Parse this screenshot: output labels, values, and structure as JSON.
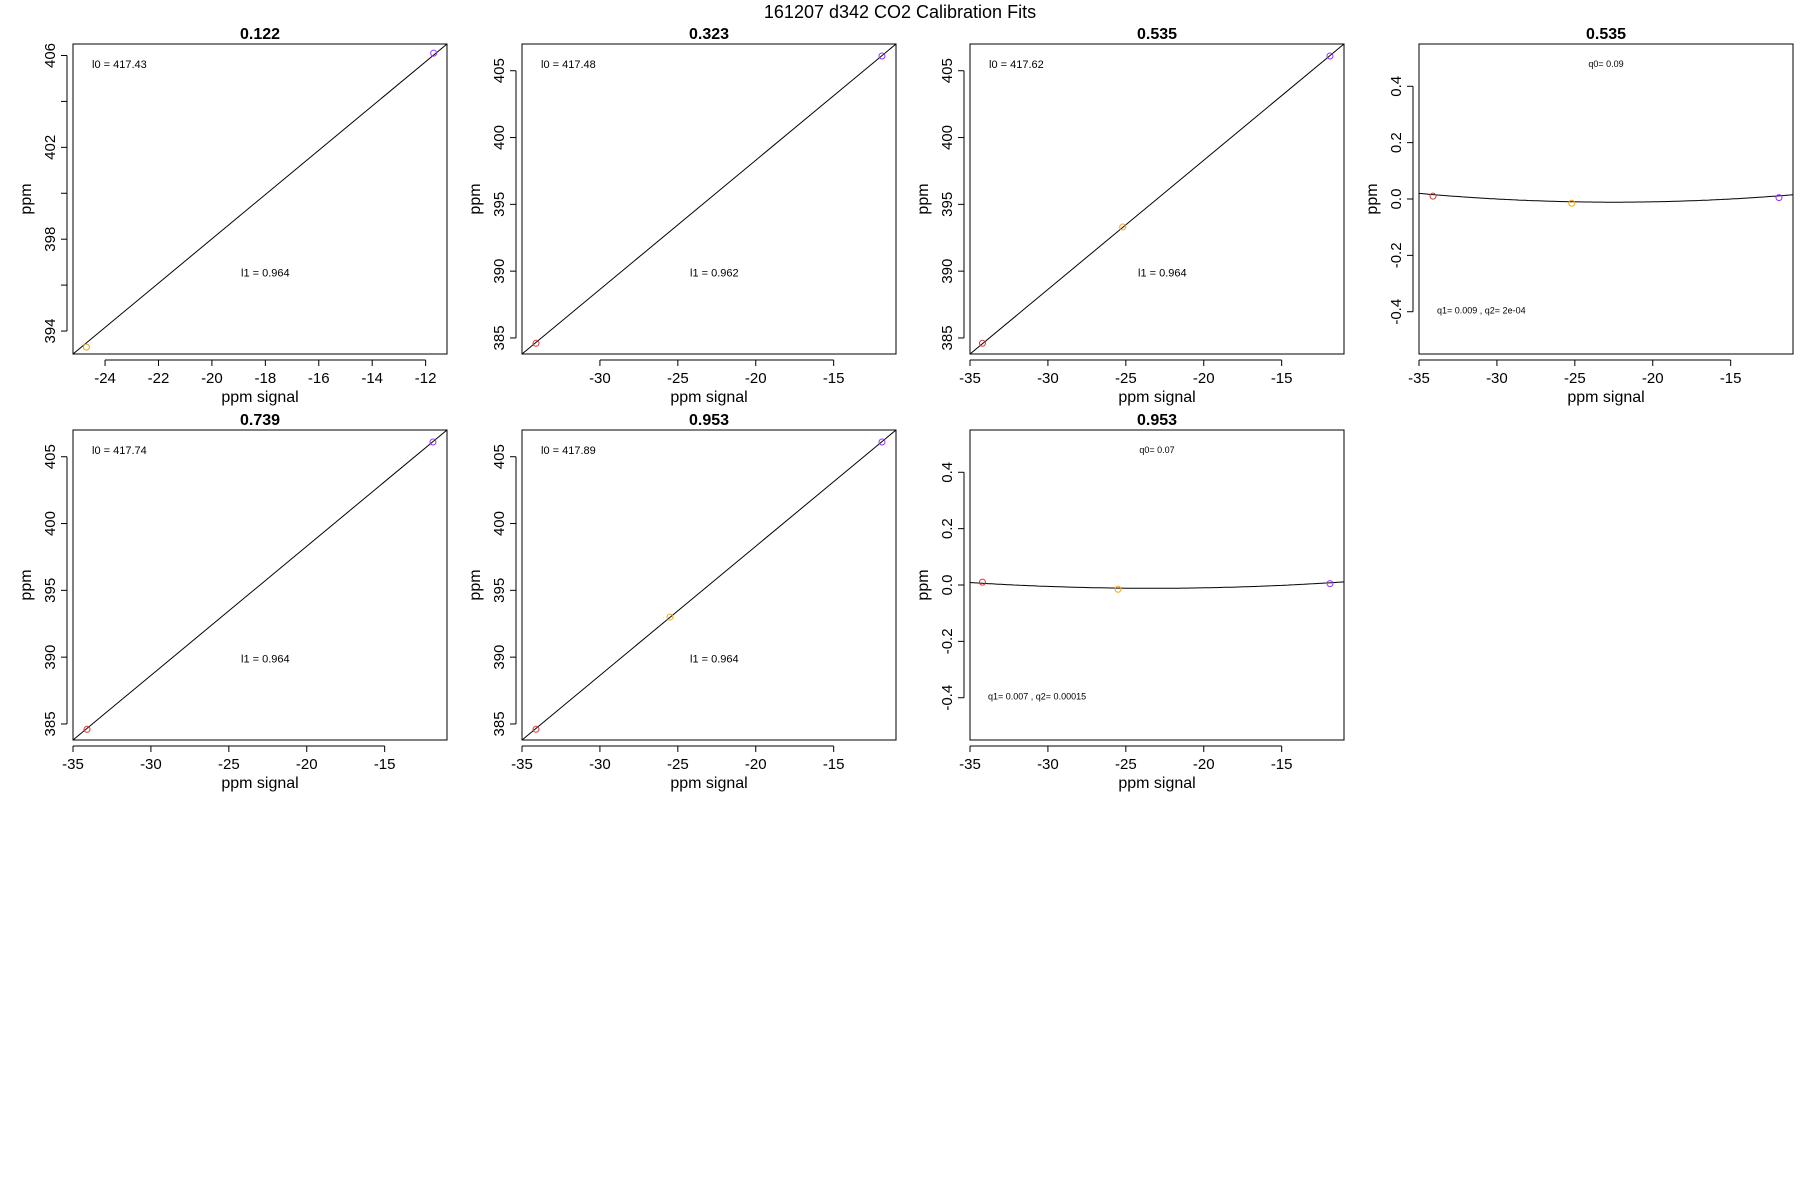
{
  "figure": {
    "title": "161207   d342   CO2 Calibration Fits"
  },
  "colors": {
    "axis": "#000000",
    "fit": "#000000",
    "p_red": "#e0312e",
    "p_orange": "#f2a51c",
    "p_purple": "#9b30ff"
  },
  "chart_data": [
    {
      "type": "line",
      "title": "0.122",
      "xlabel": "ppm signal",
      "ylabel": "ppm",
      "xlim": [
        -25.2,
        -11.2
      ],
      "ylim": [
        393.0,
        406.5
      ],
      "xticks": [
        -24,
        -22,
        -20,
        -18,
        -16,
        -14,
        -12
      ],
      "yticks": [
        394,
        398,
        402,
        406
      ],
      "yminorticks": [
        396,
        400,
        404
      ],
      "fit": {
        "kind": "linear",
        "x": [
          -25.2,
          -11.2
        ],
        "y": [
          393.0,
          406.5
        ]
      },
      "points": [
        {
          "x": -24.7,
          "y": 393.3,
          "color": "#f2a51c"
        },
        {
          "x": -11.7,
          "y": 406.1,
          "color": "#9b30ff"
        }
      ],
      "annotations": [
        {
          "text": "l0 =  417.43",
          "pos": "top-left"
        },
        {
          "text": "l1 =  0.964",
          "pos": "mid-lower"
        }
      ]
    },
    {
      "type": "line",
      "title": "0.323",
      "xlabel": "ppm signal",
      "ylabel": "ppm",
      "xlim": [
        -35.0,
        -11.0
      ],
      "ylim": [
        383.8,
        407.0
      ],
      "xticks": [
        -30,
        -25,
        -20,
        -15
      ],
      "yticks": [
        385,
        390,
        395,
        400,
        405
      ],
      "fit": {
        "kind": "linear",
        "x": [
          -35.0,
          -11.0
        ],
        "y": [
          383.8,
          407.0
        ]
      },
      "points": [
        {
          "x": -34.1,
          "y": 384.6,
          "color": "#e0312e"
        },
        {
          "x": -11.9,
          "y": 406.1,
          "color": "#9b30ff"
        }
      ],
      "annotations": [
        {
          "text": "l0 =  417.48",
          "pos": "top-left"
        },
        {
          "text": "l1 =  0.962",
          "pos": "mid-lower"
        }
      ]
    },
    {
      "type": "line",
      "title": "0.535",
      "xlabel": "ppm signal",
      "ylabel": "ppm",
      "xlim": [
        -35.0,
        -11.0
      ],
      "ylim": [
        383.8,
        407.0
      ],
      "xticks": [
        -35,
        -30,
        -25,
        -20,
        -15
      ],
      "yticks": [
        385,
        390,
        395,
        400,
        405
      ],
      "fit": {
        "kind": "linear",
        "x": [
          -35.0,
          -11.0
        ],
        "y": [
          383.8,
          407.0
        ]
      },
      "points": [
        {
          "x": -34.2,
          "y": 384.6,
          "color": "#e0312e"
        },
        {
          "x": -25.2,
          "y": 393.3,
          "color": "#f2a51c"
        },
        {
          "x": -11.9,
          "y": 406.1,
          "color": "#9b30ff"
        }
      ],
      "annotations": [
        {
          "text": "l0 =  417.62",
          "pos": "top-left"
        },
        {
          "text": "l1 =  0.964",
          "pos": "mid-lower"
        }
      ]
    },
    {
      "type": "line",
      "title": "0.535",
      "xlabel": "ppm signal",
      "ylabel": "ppm",
      "xlim": [
        -35.0,
        -11.0
      ],
      "ylim": [
        -0.55,
        0.55
      ],
      "xticks": [
        -35,
        -30,
        -25,
        -20,
        -15
      ],
      "yticks": [
        -0.4,
        -0.2,
        0.0,
        0.2,
        0.4
      ],
      "ytick_labels": [
        "-0.4",
        "-0.2",
        "0.0",
        "0.2",
        "0.4"
      ],
      "fit": {
        "kind": "quadratic",
        "coef": [
          0.09,
          0.009,
          0.0002
        ]
      },
      "points": [
        {
          "x": -34.1,
          "y": 0.01,
          "color": "#e0312e"
        },
        {
          "x": -25.2,
          "y": -0.015,
          "color": "#f2a51c"
        },
        {
          "x": -11.9,
          "y": 0.005,
          "color": "#9b30ff"
        }
      ],
      "annotations": [
        {
          "text": "q0= 0.09",
          "pos": "top-center"
        },
        {
          "text": "q1= 0.009 , q2= 2e-04",
          "pos": "bottom-left"
        }
      ]
    },
    {
      "type": "line",
      "title": "0.739",
      "xlabel": "ppm signal",
      "ylabel": "ppm",
      "xlim": [
        -35.0,
        -11.0
      ],
      "ylim": [
        383.8,
        407.0
      ],
      "xticks": [
        -35,
        -30,
        -25,
        -20,
        -15
      ],
      "yticks": [
        385,
        390,
        395,
        400,
        405
      ],
      "fit": {
        "kind": "linear",
        "x": [
          -35.0,
          -11.0
        ],
        "y": [
          383.8,
          407.0
        ]
      },
      "points": [
        {
          "x": -34.1,
          "y": 384.6,
          "color": "#e0312e"
        },
        {
          "x": -11.9,
          "y": 406.1,
          "color": "#9b30ff"
        }
      ],
      "annotations": [
        {
          "text": "l0 =  417.74",
          "pos": "top-left"
        },
        {
          "text": "l1 =  0.964",
          "pos": "mid-lower"
        }
      ]
    },
    {
      "type": "line",
      "title": "0.953",
      "xlabel": "ppm signal",
      "ylabel": "ppm",
      "xlim": [
        -35.0,
        -11.0
      ],
      "ylim": [
        383.8,
        407.0
      ],
      "xticks": [
        -35,
        -30,
        -25,
        -20,
        -15
      ],
      "yticks": [
        385,
        390,
        395,
        400,
        405
      ],
      "fit": {
        "kind": "linear",
        "x": [
          -35.0,
          -11.0
        ],
        "y": [
          383.8,
          407.0
        ]
      },
      "points": [
        {
          "x": -34.1,
          "y": 384.6,
          "color": "#e0312e"
        },
        {
          "x": -25.5,
          "y": 393.0,
          "color": "#f2a51c"
        },
        {
          "x": -11.9,
          "y": 406.1,
          "color": "#9b30ff"
        }
      ],
      "annotations": [
        {
          "text": "l0 =  417.89",
          "pos": "top-left"
        },
        {
          "text": "l1 =  0.964",
          "pos": "mid-lower"
        }
      ]
    },
    {
      "type": "line",
      "title": "0.953",
      "xlabel": "ppm signal",
      "ylabel": "ppm",
      "xlim": [
        -35.0,
        -11.0
      ],
      "ylim": [
        -0.55,
        0.55
      ],
      "xticks": [
        -35,
        -30,
        -25,
        -20,
        -15
      ],
      "yticks": [
        -0.4,
        -0.2,
        0.0,
        0.2,
        0.4
      ],
      "ytick_labels": [
        "-0.4",
        "-0.2",
        "0.0",
        "0.2",
        "0.4"
      ],
      "fit": {
        "kind": "quadratic",
        "coef": [
          0.07,
          0.007,
          0.00015
        ]
      },
      "points": [
        {
          "x": -34.2,
          "y": 0.01,
          "color": "#e0312e"
        },
        {
          "x": -25.5,
          "y": -0.015,
          "color": "#f2a51c"
        },
        {
          "x": -11.9,
          "y": 0.005,
          "color": "#9b30ff"
        }
      ],
      "annotations": [
        {
          "text": "q0= 0.07",
          "pos": "top-center"
        },
        {
          "text": "q1= 0.007 , q2= 0.00015",
          "pos": "bottom-left"
        }
      ]
    }
  ]
}
